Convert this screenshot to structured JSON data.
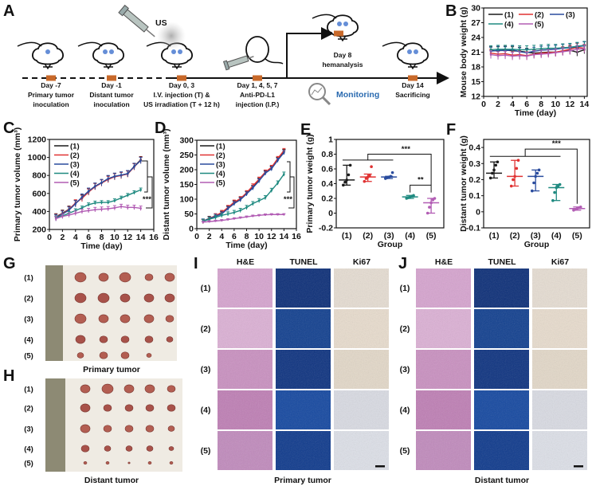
{
  "panels": {
    "a": "A",
    "b": "B",
    "c": "C",
    "d": "D",
    "e": "E",
    "f": "F",
    "g": "G",
    "h": "H",
    "i": "I",
    "j": "J"
  },
  "colors": {
    "g1": "#1a1a1a",
    "g2": "#e03232",
    "g3": "#2a4c9e",
    "g4": "#1f8a80",
    "g5": "#b25db4",
    "accent": "#c8692a",
    "monitor": "#2a6ab0"
  },
  "timeline": {
    "us_label": "US",
    "stages": [
      {
        "day": "Day -7",
        "line1": "Primary tumor",
        "line2": "inoculation"
      },
      {
        "day": "Day -1",
        "line1": "Distant tumor",
        "line2": "inoculation"
      },
      {
        "day": "Day 0, 3",
        "line1": "I.V. injection (T) &",
        "line2": "US irradiation (T + 12 h)"
      },
      {
        "day": "Day 1, 4, 5, 7",
        "line1": "Anti-PD-L1",
        "line2": "injection (I.P.)"
      },
      {
        "day": "Day 8",
        "line1": "hemanalysis"
      },
      {
        "day": "Day 14",
        "line1": "Sacrificing"
      }
    ],
    "monitoring": "Monitoring"
  },
  "chart_data": [
    {
      "id": "B",
      "type": "line",
      "xlabel": "Time (day)",
      "ylabel": "Mouse body weight (g)",
      "xlim": [
        0,
        14.4
      ],
      "ylim": [
        12,
        30
      ],
      "xticks": [
        0,
        2,
        4,
        6,
        8,
        10,
        12,
        14
      ],
      "yticks": [
        12,
        15,
        18,
        21,
        24,
        27,
        30
      ],
      "legend": "top",
      "x": [
        1,
        2,
        3,
        4,
        5,
        6,
        7,
        8,
        9,
        10,
        11,
        12,
        13,
        14
      ],
      "series": [
        {
          "name": "(1)",
          "values": [
            21.3,
            21.3,
            21.4,
            21.3,
            21.2,
            21.0,
            20.8,
            20.9,
            21.0,
            21.0,
            21.2,
            21.4,
            21.0,
            21.5
          ],
          "err": 0.8
        },
        {
          "name": "(2)",
          "values": [
            20.8,
            20.6,
            20.7,
            20.4,
            20.5,
            20.3,
            20.6,
            20.8,
            20.9,
            21.0,
            21.3,
            21.6,
            22.0,
            21.8
          ],
          "err": 0.8
        },
        {
          "name": "(3)",
          "values": [
            21.2,
            21.4,
            21.3,
            21.5,
            21.1,
            20.9,
            21.2,
            21.4,
            21.5,
            21.6,
            21.8,
            21.9,
            22.1,
            22.3
          ],
          "err": 0.8
        },
        {
          "name": "(4)",
          "values": [
            21.5,
            21.6,
            21.6,
            21.6,
            21.5,
            21.5,
            21.6,
            21.7,
            21.8,
            21.8,
            21.9,
            22.0,
            22.2,
            22.4
          ],
          "err": 0.8
        },
        {
          "name": "(5)",
          "values": [
            20.5,
            20.3,
            20.4,
            20.2,
            20.3,
            20.2,
            20.5,
            20.6,
            20.7,
            20.9,
            21.1,
            21.3,
            21.6,
            21.7
          ],
          "err": 0.8
        }
      ]
    },
    {
      "id": "C",
      "type": "line",
      "xlabel": "Time (day)",
      "ylabel": "Primary tumor volume (mm³)",
      "xlim": [
        0,
        16
      ],
      "ylim": [
        200,
        1200
      ],
      "xticks": [
        0,
        2,
        4,
        6,
        8,
        10,
        12,
        14,
        16
      ],
      "yticks": [
        200,
        400,
        600,
        800,
        1000,
        1200
      ],
      "legend": "top-left",
      "annotation": "***",
      "x": [
        1,
        2,
        3,
        4,
        5,
        6,
        7,
        8,
        9,
        10,
        11,
        12,
        13,
        14
      ],
      "series": [
        {
          "name": "(1)",
          "values": [
            340,
            380,
            425,
            490,
            550,
            620,
            680,
            720,
            760,
            790,
            800,
            820,
            900,
            975
          ],
          "err": 35
        },
        {
          "name": "(2)",
          "values": [
            335,
            375,
            420,
            495,
            545,
            615,
            675,
            715,
            755,
            785,
            800,
            815,
            895,
            970
          ],
          "err": 35
        },
        {
          "name": "(3)",
          "values": [
            330,
            370,
            415,
            485,
            560,
            625,
            680,
            720,
            765,
            790,
            805,
            820,
            900,
            965
          ],
          "err": 35
        },
        {
          "name": "(4)",
          "values": [
            330,
            350,
            380,
            410,
            440,
            475,
            495,
            500,
            500,
            520,
            550,
            580,
            610,
            640
          ],
          "err": 20
        },
        {
          "name": "(5)",
          "values": [
            320,
            345,
            360,
            380,
            400,
            410,
            420,
            425,
            430,
            440,
            455,
            445,
            445,
            435
          ],
          "err": 25
        }
      ]
    },
    {
      "id": "D",
      "type": "line",
      "xlabel": "Time (day)",
      "ylabel": "Distant tumor volume (mm³)",
      "xlim": [
        0,
        16
      ],
      "ylim": [
        0,
        300
      ],
      "xticks": [
        0,
        2,
        4,
        6,
        8,
        10,
        12,
        14,
        16
      ],
      "yticks": [
        0,
        50,
        100,
        150,
        200,
        250,
        300
      ],
      "legend": "top-left",
      "annotation": "***",
      "x": [
        1,
        2,
        3,
        4,
        5,
        6,
        7,
        8,
        9,
        10,
        11,
        12,
        13,
        14
      ],
      "series": [
        {
          "name": "(1)",
          "values": [
            25,
            35,
            43,
            52,
            70,
            88,
            100,
            120,
            140,
            165,
            190,
            205,
            235,
            262
          ],
          "err": 7
        },
        {
          "name": "(2)",
          "values": [
            24,
            34,
            44,
            55,
            72,
            90,
            102,
            122,
            145,
            168,
            192,
            208,
            238,
            265
          ],
          "err": 7
        },
        {
          "name": "(3)",
          "values": [
            26,
            33,
            42,
            50,
            68,
            85,
            98,
            118,
            138,
            162,
            188,
            203,
            232,
            258
          ],
          "err": 7
        },
        {
          "name": "(4)",
          "values": [
            25,
            32,
            38,
            45,
            50,
            55,
            62,
            72,
            85,
            95,
            105,
            130,
            155,
            185
          ],
          "err": 7
        },
        {
          "name": "(5)",
          "values": [
            22,
            24,
            26,
            28,
            31,
            34,
            37,
            40,
            43,
            45,
            47,
            48,
            48,
            48
          ],
          "err": 3
        }
      ]
    },
    {
      "id": "E",
      "type": "scatter",
      "xlabel": "Group",
      "ylabel": "Primary tumor weight (g)",
      "ylim": [
        -0.2,
        1.0
      ],
      "yticks": [
        -0.2,
        0.0,
        0.2,
        0.4,
        0.6,
        0.8,
        1.0
      ],
      "categories": [
        "(1)",
        "(2)",
        "(3)",
        "(4)",
        "(5)"
      ],
      "median": [
        0.45,
        0.49,
        0.49,
        0.22,
        0.14
      ],
      "low": [
        0.38,
        0.43,
        0.47,
        0.2,
        0.0
      ],
      "high": [
        0.65,
        0.53,
        0.5,
        0.24,
        0.2
      ],
      "points": [
        [
          0.38,
          0.42,
          0.45,
          0.52,
          0.65
        ],
        [
          0.43,
          0.47,
          0.49,
          0.51,
          0.63
        ],
        [
          0.47,
          0.48,
          0.49,
          0.5,
          0.55
        ],
        [
          0.2,
          0.21,
          0.22,
          0.23,
          0.24
        ],
        [
          0.0,
          0.08,
          0.14,
          0.18,
          0.2
        ]
      ],
      "annotations": [
        "***",
        "**"
      ]
    },
    {
      "id": "F",
      "type": "scatter",
      "xlabel": "Group",
      "ylabel": "Distant tumor weight (g)",
      "ylim": [
        -0.1,
        0.45
      ],
      "yticks": [
        -0.1,
        0.0,
        0.1,
        0.2,
        0.3,
        0.4
      ],
      "categories": [
        "(1)",
        "(2)",
        "(3)",
        "(4)",
        "(5)"
      ],
      "median": [
        0.24,
        0.22,
        0.22,
        0.15,
        0.02
      ],
      "low": [
        0.21,
        0.16,
        0.13,
        0.07,
        0.01
      ],
      "high": [
        0.31,
        0.32,
        0.26,
        0.17,
        0.03
      ],
      "points": [
        [
          0.21,
          0.24,
          0.26,
          0.29,
          0.31
        ],
        [
          0.16,
          0.2,
          0.22,
          0.27,
          0.32
        ],
        [
          0.13,
          0.18,
          0.22,
          0.24,
          0.26
        ],
        [
          0.07,
          0.12,
          0.15,
          0.16,
          0.17
        ],
        [
          0.01,
          0.015,
          0.02,
          0.025,
          0.03
        ]
      ],
      "annotations": [
        "***"
      ]
    }
  ],
  "photos": {
    "rows": [
      "(1)",
      "(2)",
      "(3)",
      "(4)",
      "(5)"
    ],
    "primary_caption": "Primary tumor",
    "distant_caption": "Distant tumor"
  },
  "histology": {
    "headers": [
      "H&E",
      "TUNEL",
      "Ki67"
    ],
    "rows": [
      "(1)",
      "(2)",
      "(3)",
      "(4)",
      "(5)"
    ],
    "primary_caption": "Primary tumor",
    "distant_caption": "Distant tumor"
  }
}
